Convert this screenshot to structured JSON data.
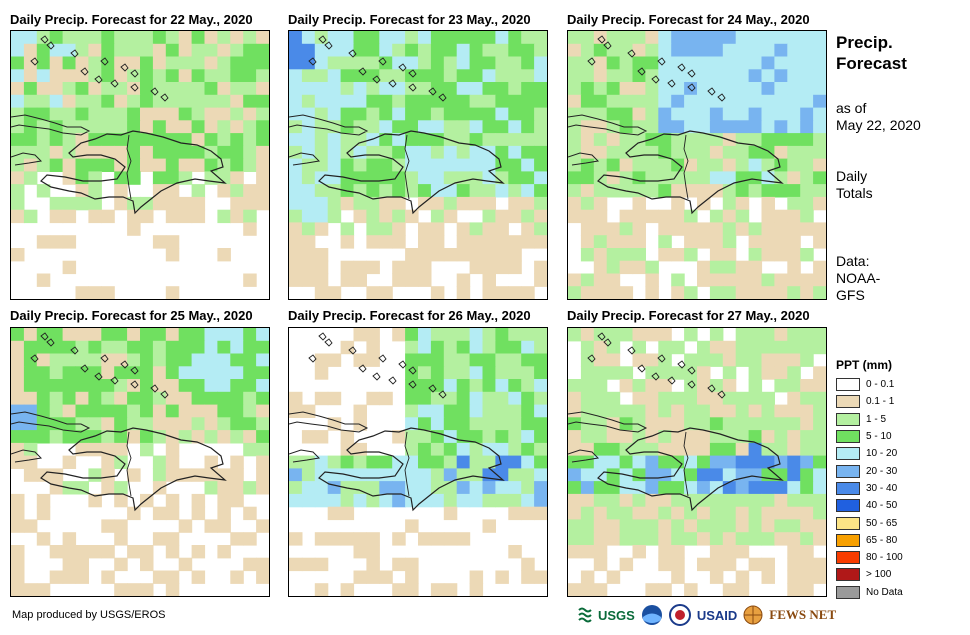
{
  "panels": [
    {
      "title": "Daily Precip. Forecast for 22 May., 2020",
      "scheme": 0
    },
    {
      "title": "Daily Precip. Forecast for 23 May., 2020",
      "scheme": 1
    },
    {
      "title": "Daily Precip. Forecast for 24 May., 2020",
      "scheme": 2
    },
    {
      "title": "Daily Precip. Forecast for 25 May., 2020",
      "scheme": 3
    },
    {
      "title": "Daily Precip. Forecast for 26 May., 2020",
      "scheme": 4
    },
    {
      "title": "Daily Precip. Forecast for 27 May., 2020",
      "scheme": 5
    }
  ],
  "side": {
    "title_line1": "Precip.",
    "title_line2": "Forecast",
    "asof_line1": "as of",
    "asof_line2": "May 22, 2020",
    "totals_line1": "Daily",
    "totals_line2": "Totals",
    "data_line1": "Data:",
    "data_line2": "NOAA-",
    "data_line3": "GFS"
  },
  "legend": {
    "title": "PPT (mm)",
    "items": [
      {
        "label": "0 - 0.1",
        "color": "#ffffff"
      },
      {
        "label": "0.1 - 1",
        "color": "#ecd9b6"
      },
      {
        "label": "1 - 5",
        "color": "#b4f0a0"
      },
      {
        "label": "5 - 10",
        "color": "#70e060"
      },
      {
        "label": "10 - 20",
        "color": "#b4ecf4"
      },
      {
        "label": "20 - 30",
        "color": "#78b4f0"
      },
      {
        "label": "30 - 40",
        "color": "#4a8ae8"
      },
      {
        "label": "40 - 50",
        "color": "#2060e0"
      },
      {
        "label": "50 - 65",
        "color": "#fce486"
      },
      {
        "label": "65 - 80",
        "color": "#f8a000"
      },
      {
        "label": "80 - 100",
        "color": "#f83c00"
      },
      {
        "label": "> 100",
        "color": "#b01818"
      },
      {
        "label": "No Data",
        "color": "#9a9a9a"
      }
    ]
  },
  "footer": {
    "credit": "Map produced by USGS/EROS"
  },
  "logos": {
    "usgs": "USGS",
    "usaid": "USAID",
    "fewsnet": "FEWS NET"
  }
}
